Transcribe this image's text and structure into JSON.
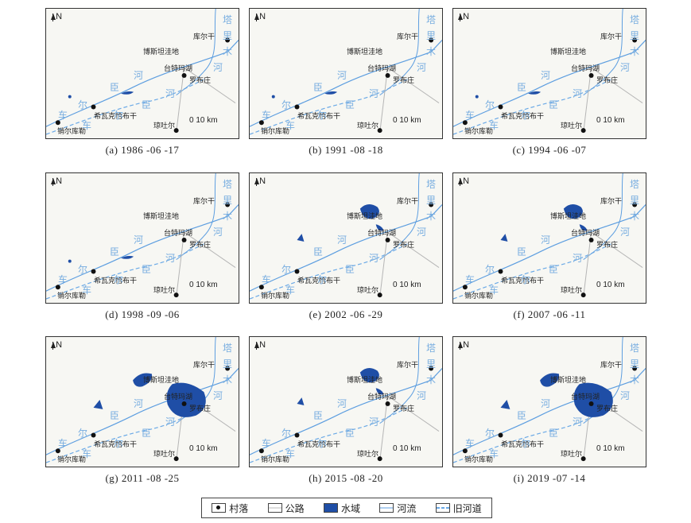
{
  "map_labels": {
    "north": "N",
    "kuerdeng": "库尔干",
    "boston": "博斯坦洼地",
    "taitema": "台特玛湖",
    "luobuzhuang": "罗布庄",
    "xiwake": "希瓦克恰布干",
    "qiongtuer": "琼吐尔",
    "xiaoerkule": "销尔库勒",
    "scale": "0  10 km",
    "river_chars": [
      "车",
      "尔",
      "臣",
      "河"
    ],
    "old_river_chars": [
      "车",
      "尔",
      "臣",
      "河"
    ],
    "tarim_chars": [
      "塔",
      "里",
      "木",
      "河"
    ]
  },
  "panels": [
    {
      "caption": "(a) 1986 -06 -17",
      "water": "low"
    },
    {
      "caption": "(b) 1991 -08 -18",
      "water": "low"
    },
    {
      "caption": "(c) 1994 -06 -07",
      "water": "low"
    },
    {
      "caption": "(d) 1998 -09 -06",
      "water": "low"
    },
    {
      "caption": "(e) 2002 -06 -29",
      "water": "medium"
    },
    {
      "caption": "(f) 2007 -06 -11",
      "water": "medium"
    },
    {
      "caption": "(g) 2011 -08 -25",
      "water": "high"
    },
    {
      "caption": "(h) 2015 -08 -20",
      "water": "medium"
    },
    {
      "caption": "(i) 2019 -07 -14",
      "water": "high"
    }
  ],
  "legend": {
    "village": "村落",
    "road": "公路",
    "water": "水域",
    "river": "河流",
    "old_river": "旧河道"
  },
  "colors": {
    "water": "#1f4ea6",
    "river": "#5d9ee0",
    "old_river": "#6aa9e6",
    "road": "#b5b5b5",
    "background": "#f7f7f3"
  }
}
